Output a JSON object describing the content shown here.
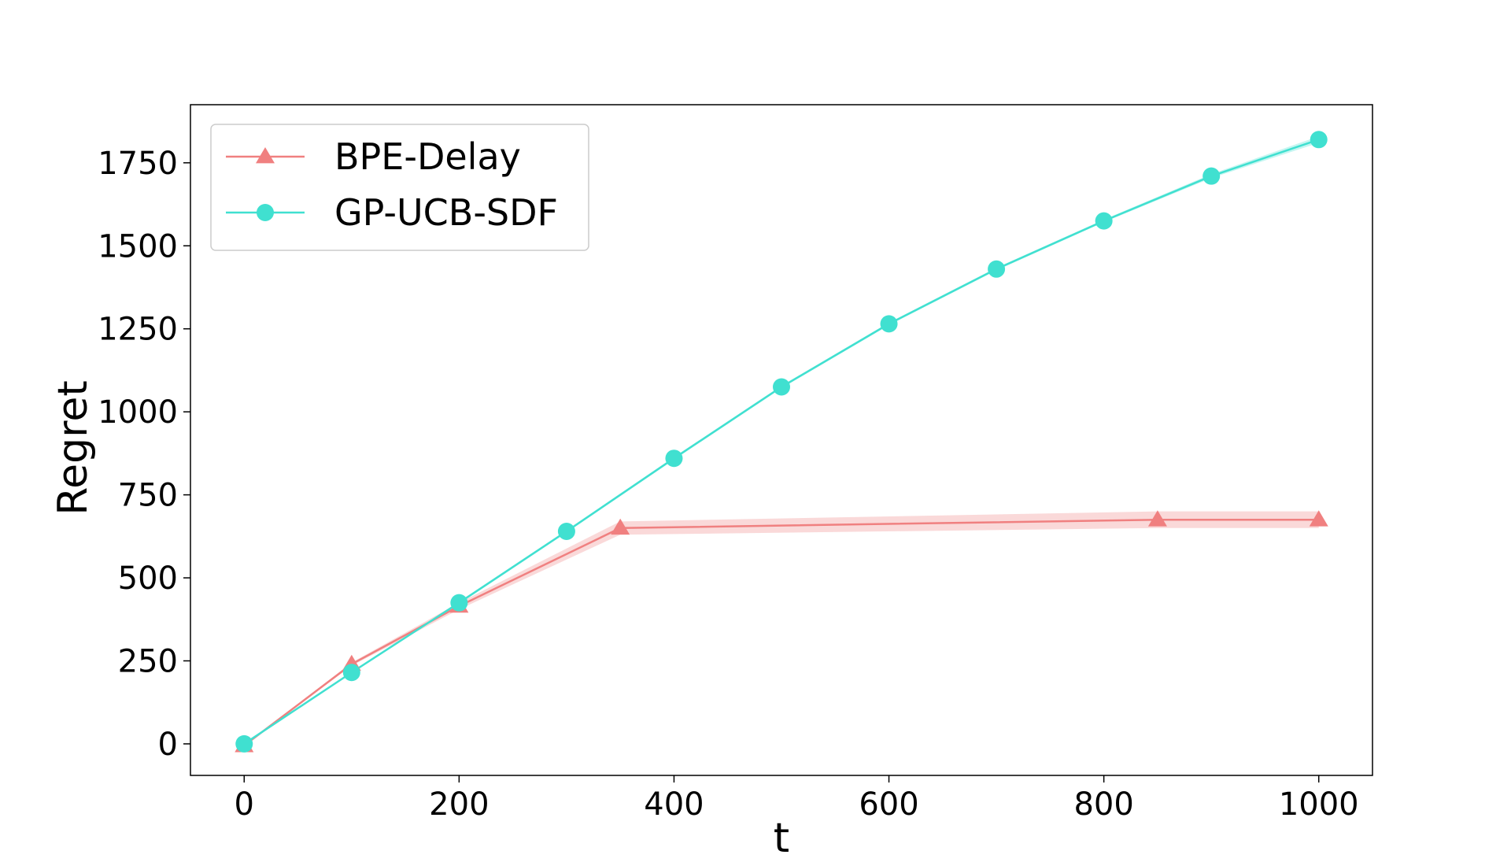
{
  "chart_data": {
    "type": "line",
    "title": "",
    "xlabel": "t",
    "ylabel": "Regret",
    "xlim": [
      -50,
      1050
    ],
    "ylim": [
      -95,
      1925
    ],
    "x_ticks": [
      0,
      200,
      400,
      600,
      800,
      1000
    ],
    "y_ticks": [
      0,
      250,
      500,
      750,
      1000,
      1250,
      1500,
      1750
    ],
    "grid": false,
    "legend_position": "top-left",
    "series": [
      {
        "name": "BPE-Delay",
        "color": "#F08080",
        "marker": "triangle",
        "x": [
          0,
          100,
          200,
          350,
          850,
          1000
        ],
        "y": [
          -5,
          240,
          415,
          650,
          675,
          675
        ],
        "band_lower": [
          -5,
          235,
          405,
          630,
          650,
          650
        ],
        "band_upper": [
          -5,
          245,
          425,
          670,
          700,
          700
        ]
      },
      {
        "name": "GP-UCB-SDF",
        "color": "#40E0D0",
        "marker": "circle",
        "x": [
          0,
          100,
          200,
          300,
          400,
          500,
          600,
          700,
          800,
          900,
          1000
        ],
        "y": [
          0,
          215,
          425,
          640,
          860,
          1075,
          1265,
          1430,
          1575,
          1710,
          1820
        ],
        "band_lower": [
          0,
          212,
          421,
          636,
          856,
          1071,
          1261,
          1426,
          1571,
          1704,
          1810
        ],
        "band_upper": [
          0,
          218,
          429,
          644,
          864,
          1079,
          1269,
          1434,
          1579,
          1716,
          1830
        ]
      }
    ]
  }
}
